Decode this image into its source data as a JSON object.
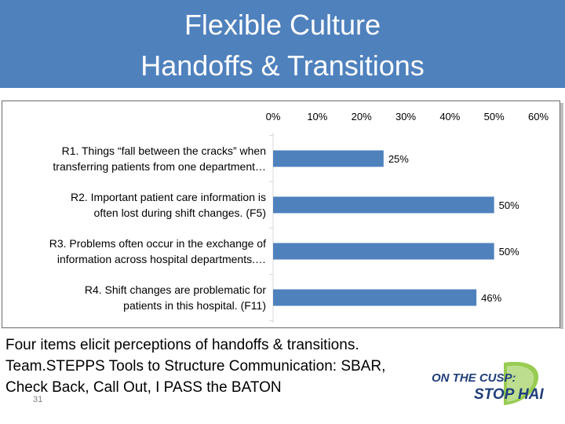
{
  "slide": {
    "title_line1": "Flexible Culture",
    "title_line2": "Handoffs & Transitions",
    "caption_line1": "Four items elicit perceptions of handoffs & transitions.",
    "caption_line2": "Team.STEPPS Tools to Structure Communication: SBAR,",
    "caption_line3": "Check Back, Call Out, I PASS the BATON",
    "slide_number": "31",
    "logo_line1": "ON THE CUSP:",
    "logo_line2": "STOP HAI"
  },
  "colors": {
    "title_band": "#4f81bd",
    "bar": "#4f81bd",
    "logo_blue": "#1f3f7a",
    "logo_green": "#8dc63f"
  },
  "chart_data": {
    "type": "bar",
    "orientation": "horizontal",
    "title": "",
    "xlabel": "",
    "ylabel": "",
    "x_axis_position": "top",
    "xlim": [
      0,
      60
    ],
    "xticks": [
      "0%",
      "10%",
      "20%",
      "30%",
      "40%",
      "50%",
      "60%"
    ],
    "grid": false,
    "legend": "none",
    "categories": [
      [
        "R1. Things “fall between the cracks” when",
        "transferring patients from one department…"
      ],
      [
        "R2. Important patient care information is",
        "often lost during shift changes.  (F5)"
      ],
      [
        "R3. Problems often occur in the exchange of",
        "information across hospital departments.…"
      ],
      [
        "R4. Shift changes are problematic for",
        "patients in this hospital.  (F11)"
      ]
    ],
    "values": [
      25,
      50,
      50,
      46
    ],
    "data_labels": [
      "25%",
      "50%",
      "50%",
      "46%"
    ]
  }
}
